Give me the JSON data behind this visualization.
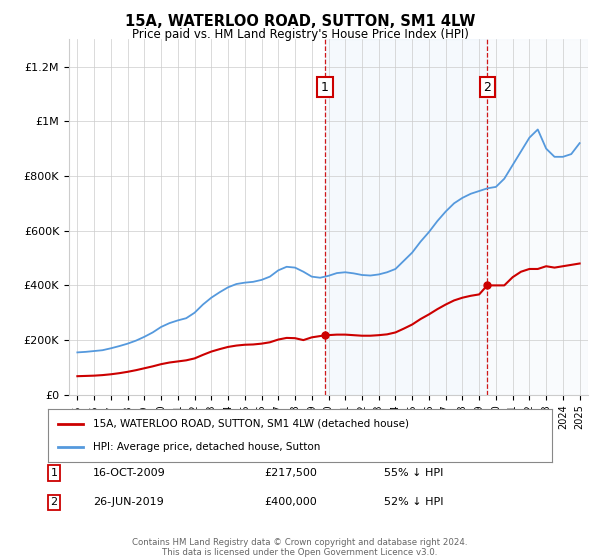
{
  "title": "15A, WATERLOO ROAD, SUTTON, SM1 4LW",
  "subtitle": "Price paid vs. HM Land Registry's House Price Index (HPI)",
  "footer": "Contains HM Land Registry data © Crown copyright and database right 2024.\nThis data is licensed under the Open Government Licence v3.0.",
  "legend_line1": "15A, WATERLOO ROAD, SUTTON, SM1 4LW (detached house)",
  "legend_line2": "HPI: Average price, detached house, Sutton",
  "marker1_label": "1",
  "marker1_date": "16-OCT-2009",
  "marker1_price": "£217,500",
  "marker1_pct": "55% ↓ HPI",
  "marker1_x": 2009.79,
  "marker1_y": 217500,
  "marker2_label": "2",
  "marker2_date": "26-JUN-2019",
  "marker2_price": "£400,000",
  "marker2_pct": "52% ↓ HPI",
  "marker2_x": 2019.48,
  "marker2_y": 400000,
  "ylim": [
    0,
    1300000
  ],
  "xlim": [
    1994.5,
    2025.5
  ],
  "yticks": [
    0,
    200000,
    400000,
    600000,
    800000,
    1000000,
    1200000
  ],
  "ytick_labels": [
    "£0",
    "£200K",
    "£400K",
    "£600K",
    "£800K",
    "£1M",
    "£1.2M"
  ],
  "hpi_color": "#5599dd",
  "sale_color": "#cc0000",
  "shade_color": "#cce0f5",
  "bg_color": "#ffffff",
  "grid_color": "#cccccc",
  "hpi_years": [
    1995,
    1995.5,
    1996,
    1996.5,
    1997,
    1997.5,
    1998,
    1998.5,
    1999,
    1999.5,
    2000,
    2000.5,
    2001,
    2001.5,
    2002,
    2002.5,
    2003,
    2003.5,
    2004,
    2004.5,
    2005,
    2005.5,
    2006,
    2006.5,
    2007,
    2007.5,
    2008,
    2008.5,
    2009,
    2009.5,
    2010,
    2010.5,
    2011,
    2011.5,
    2012,
    2012.5,
    2013,
    2013.5,
    2014,
    2014.5,
    2015,
    2015.5,
    2016,
    2016.5,
    2017,
    2017.5,
    2018,
    2018.5,
    2019,
    2019.5,
    2020,
    2020.5,
    2021,
    2021.5,
    2022,
    2022.5,
    2023,
    2023.5,
    2024,
    2024.5,
    2025
  ],
  "hpi_vals": [
    155000,
    157000,
    160000,
    163000,
    170000,
    178000,
    187000,
    198000,
    212000,
    228000,
    248000,
    262000,
    272000,
    280000,
    300000,
    330000,
    355000,
    375000,
    393000,
    405000,
    410000,
    413000,
    420000,
    432000,
    455000,
    468000,
    465000,
    450000,
    432000,
    428000,
    435000,
    445000,
    448000,
    444000,
    438000,
    436000,
    440000,
    448000,
    460000,
    490000,
    520000,
    560000,
    595000,
    635000,
    670000,
    700000,
    720000,
    735000,
    745000,
    755000,
    760000,
    790000,
    840000,
    890000,
    940000,
    970000,
    900000,
    870000,
    870000,
    880000,
    920000
  ],
  "sale_years": [
    1995,
    1995.5,
    1996,
    1996.5,
    1997,
    1997.5,
    1998,
    1998.5,
    1999,
    1999.5,
    2000,
    2000.5,
    2001,
    2001.5,
    2002,
    2002.5,
    2003,
    2003.5,
    2004,
    2004.5,
    2005,
    2005.5,
    2006,
    2006.5,
    2007,
    2007.5,
    2008,
    2008.5,
    2009,
    2009.79,
    2009.8,
    2010.5,
    2011,
    2011.5,
    2012,
    2012.5,
    2013,
    2013.5,
    2014,
    2014.5,
    2015,
    2015.5,
    2016,
    2016.5,
    2017,
    2017.5,
    2018,
    2018.5,
    2019,
    2019.48,
    2019.49,
    2020,
    2020.5,
    2021,
    2021.5,
    2022,
    2022.5,
    2023,
    2023.5,
    2024,
    2024.5,
    2025
  ],
  "sale_vals": [
    68000,
    69000,
    70000,
    72000,
    75000,
    79000,
    84000,
    90000,
    97000,
    104000,
    112000,
    118000,
    122000,
    126000,
    133000,
    146000,
    158000,
    167000,
    175000,
    180000,
    183000,
    184000,
    187000,
    192000,
    202000,
    208000,
    207000,
    200000,
    210000,
    217500,
    217500,
    220000,
    220000,
    218000,
    216000,
    216000,
    218000,
    221000,
    228000,
    242000,
    257000,
    277000,
    294000,
    313000,
    330000,
    345000,
    355000,
    362000,
    367000,
    400000,
    400000,
    400000,
    400000,
    430000,
    450000,
    460000,
    460000,
    470000,
    465000,
    470000,
    475000,
    480000
  ]
}
